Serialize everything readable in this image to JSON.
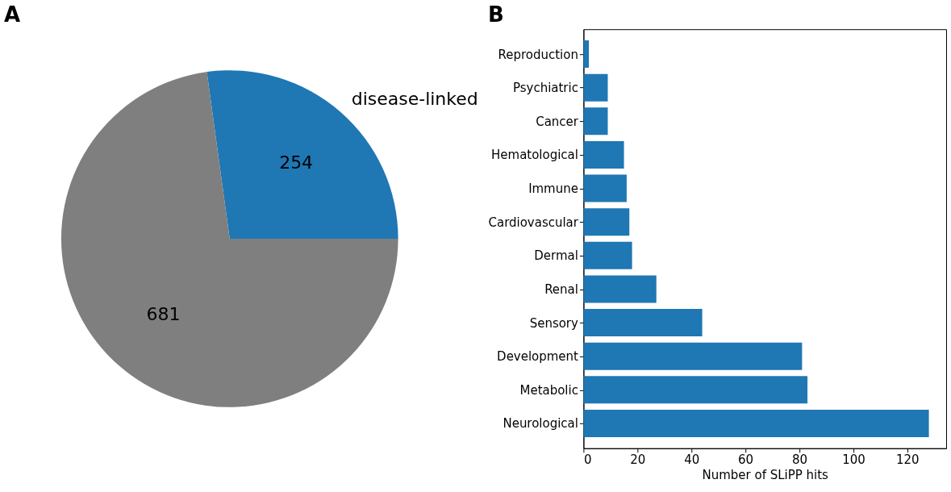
{
  "chart_data": [
    {
      "type": "pie",
      "title": "A",
      "categories": [
        "disease-linked",
        null
      ],
      "values": [
        254,
        681
      ],
      "colors": [
        "#1f77b4",
        "#7f7f7f"
      ],
      "data_labels": true
    },
    {
      "type": "bar",
      "title": "B",
      "orientation": "horizontal",
      "categories": [
        "Reproduction",
        "Psychiatric",
        "Cancer",
        "Hematological",
        "Immune",
        "Cardiovascular",
        "Dermal",
        "Renal",
        "Sensory",
        "Development",
        "Metabolic",
        "Neurological"
      ],
      "values": [
        2,
        9,
        9,
        15,
        16,
        17,
        18,
        27,
        44,
        81,
        83,
        128
      ],
      "color": "#1f77b4",
      "xlim": [
        0,
        134.4
      ],
      "xticks": [
        0,
        20,
        40,
        60,
        80,
        100,
        120
      ],
      "xlabel": "Number of SLiPP hits",
      "grid": false
    }
  ]
}
